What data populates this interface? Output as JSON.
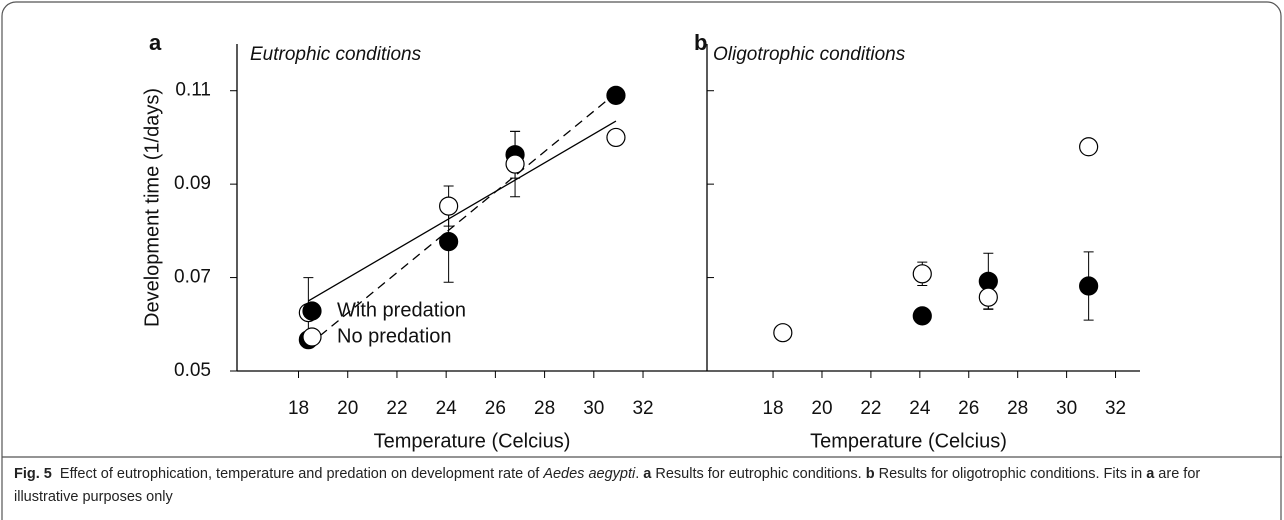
{
  "chart_data": [
    {
      "type": "scatter",
      "panel_label": "a",
      "title": "Eutrophic conditions",
      "ylabel": "Development time (1/days)",
      "xlabel": "Temperature (Celcius)",
      "xlim": [
        15.5,
        34.6
      ],
      "xticks": [
        18,
        20,
        22,
        24,
        26,
        28,
        30,
        32
      ],
      "ylim": [
        0.05,
        0.12
      ],
      "yticks": [
        0.05,
        0.07,
        0.09,
        0.11
      ],
      "legend": "lower right",
      "series": [
        {
          "name": "With predation",
          "color": "#000000",
          "x": [
            18.4,
            24.1,
            26.8,
            30.9
          ],
          "values": [
            0.0567,
            0.0777,
            0.0963,
            0.109
          ],
          "error": [
            null,
            0.0087,
            0.005,
            null
          ]
        },
        {
          "name": "No predation",
          "color": "#ffffff",
          "x": [
            18.4,
            24.1,
            26.8,
            30.9
          ],
          "values": [
            0.0625,
            0.0853,
            0.0943,
            0.1
          ],
          "error": [
            0.0075,
            0.0043,
            0.007,
            null
          ]
        }
      ],
      "fits": [
        {
          "style": "dashed",
          "x": [
            18.4,
            30.9
          ],
          "values": [
            0.0555,
            0.1095
          ]
        },
        {
          "style": "solid",
          "x": [
            18.4,
            30.9
          ],
          "values": [
            0.065,
            0.1035
          ]
        }
      ]
    },
    {
      "type": "scatter",
      "panel_label": "b",
      "title": "Oligotrophic conditions",
      "xlabel": "Temperature (Celcius)",
      "xlim": [
        15.3,
        33.0
      ],
      "xticks": [
        18,
        20,
        22,
        24,
        26,
        28,
        30,
        32
      ],
      "ylim": [
        0.05,
        0.12
      ],
      "yticks": [
        0.07,
        0.09,
        0.11
      ],
      "series": [
        {
          "color": "#000000",
          "x": [
            24.1,
            26.8,
            30.9
          ],
          "values": [
            0.0618,
            0.0692,
            0.0682
          ],
          "error": [
            null,
            0.006,
            0.0073
          ]
        },
        {
          "color": "#ffffff",
          "x": [
            18.4,
            24.1,
            26.8,
            30.9
          ],
          "values": [
            0.0582,
            0.0708,
            0.0658,
            0.098
          ],
          "error": [
            null,
            0.0025,
            0.0025,
            null
          ]
        }
      ]
    }
  ],
  "caption": [
    {
      "text": "Fig. 5",
      "style": "bold"
    },
    {
      "text": "  Effect of eutrophication, temperature and predation on development rate of ",
      "style": "normal"
    },
    {
      "text": "Aedes aegypti",
      "style": "italic"
    },
    {
      "text": ". ",
      "style": "normal"
    },
    {
      "text": "a",
      "style": "bold"
    },
    {
      "text": " Results for eutrophic conditions. ",
      "style": "normal"
    },
    {
      "text": "b",
      "style": "bold"
    },
    {
      "text": " Results for oligotrophic conditions. Fits in ",
      "style": "normal"
    },
    {
      "text": "a",
      "style": "bold"
    },
    {
      "text": " are for illustrative purposes only",
      "style": "normal"
    }
  ]
}
